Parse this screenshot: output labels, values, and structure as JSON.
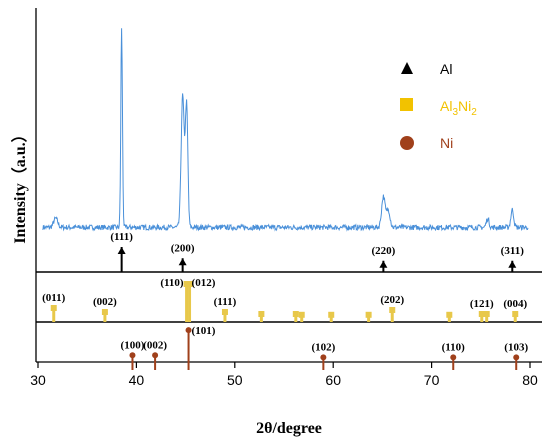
{
  "chart_data": {
    "type": "line",
    "xlabel": "2θ/degree",
    "ylabel": "Intensity（a.u.）",
    "xlim": [
      30,
      80
    ],
    "x_ticks": [
      "30",
      "40",
      "50",
      "60",
      "70",
      "80"
    ],
    "pattern": {
      "color": "#4a90d9",
      "baseline": 0.08,
      "noise": 0.012,
      "peaks": [
        {
          "x": 31.8,
          "h": 0.04,
          "w": 0.3
        },
        {
          "x": 38.5,
          "h": 0.9,
          "w": 0.12
        },
        {
          "x": 44.7,
          "h": 0.6,
          "w": 0.22
        },
        {
          "x": 45.1,
          "h": 0.55,
          "w": 0.18
        },
        {
          "x": 65.1,
          "h": 0.14,
          "w": 0.25
        },
        {
          "x": 65.6,
          "h": 0.08,
          "w": 0.25
        },
        {
          "x": 75.7,
          "h": 0.04,
          "w": 0.2
        },
        {
          "x": 78.2,
          "h": 0.08,
          "w": 0.2
        }
      ]
    },
    "legend": [
      {
        "label": "Al",
        "marker": "triangle",
        "color": "#000000"
      },
      {
        "label": "Al3Ni2",
        "label_base": "Al",
        "sub1": "3",
        "mid": "Ni",
        "sub2": "2",
        "marker": "square",
        "color": "#f2c200"
      },
      {
        "label": "Ni",
        "marker": "circle",
        "color": "#a0401b"
      }
    ],
    "reference": {
      "Al": {
        "color": "#000000",
        "peaks": [
          {
            "x": 38.5,
            "h": 1.0,
            "label": "(111)"
          },
          {
            "x": 44.7,
            "h": 0.55,
            "label": "(200)"
          },
          {
            "x": 65.1,
            "h": 0.45,
            "label": "(220)"
          },
          {
            "x": 78.2,
            "h": 0.45,
            "label": "(311)"
          }
        ]
      },
      "Al3Ni2": {
        "color": "#e8c84a",
        "peaks": [
          {
            "x": 31.6,
            "h": 0.35,
            "label": "(011)"
          },
          {
            "x": 36.8,
            "h": 0.25,
            "label": "(002)"
          },
          {
            "x": 45.1,
            "h": 0.95,
            "label": "(110)"
          },
          {
            "x": 45.4,
            "h": 0.95,
            "label": "(012)"
          },
          {
            "x": 49.0,
            "h": 0.25,
            "label": "(111)"
          },
          {
            "x": 52.7,
            "h": 0.2,
            "label": ""
          },
          {
            "x": 56.2,
            "h": 0.2,
            "label": ""
          },
          {
            "x": 56.8,
            "h": 0.18,
            "label": ""
          },
          {
            "x": 59.8,
            "h": 0.18,
            "label": ""
          },
          {
            "x": 63.6,
            "h": 0.18,
            "label": ""
          },
          {
            "x": 66.0,
            "h": 0.3,
            "label": "(202)"
          },
          {
            "x": 71.8,
            "h": 0.18,
            "label": ""
          },
          {
            "x": 75.1,
            "h": 0.2,
            "label": "(121)"
          },
          {
            "x": 75.6,
            "h": 0.2,
            "label": ""
          },
          {
            "x": 78.5,
            "h": 0.2,
            "label": "(004)"
          }
        ]
      },
      "Ni": {
        "color": "#a0401b",
        "peaks": [
          {
            "x": 39.6,
            "h": 0.35,
            "label": "(100)"
          },
          {
            "x": 41.9,
            "h": 0.35,
            "label": "(002)"
          },
          {
            "x": 45.3,
            "h": 0.95,
            "label": "(101)"
          },
          {
            "x": 59.0,
            "h": 0.3,
            "label": "(102)"
          },
          {
            "x": 72.2,
            "h": 0.3,
            "label": "(110)"
          },
          {
            "x": 78.6,
            "h": 0.3,
            "label": "(103)"
          }
        ]
      }
    }
  }
}
